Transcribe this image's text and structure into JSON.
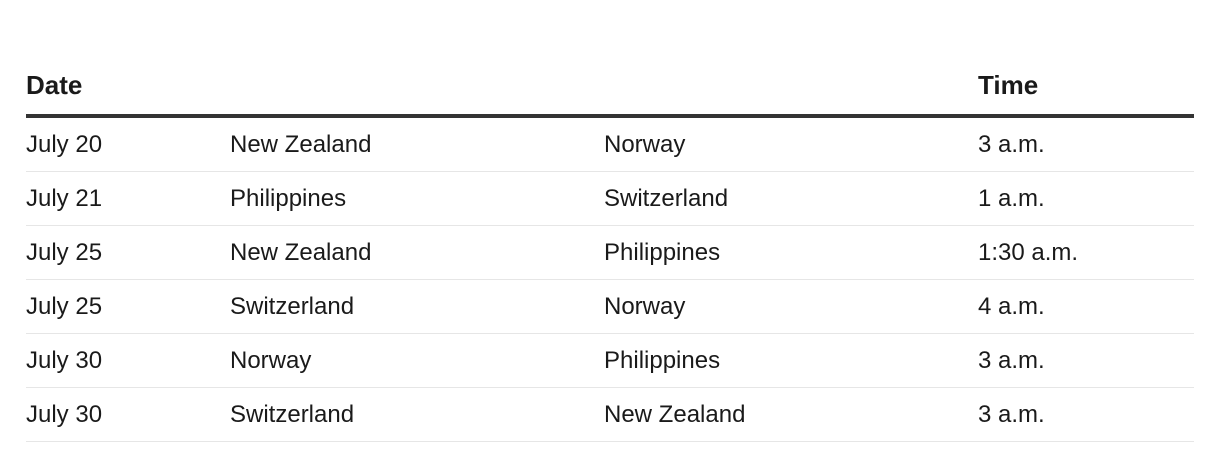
{
  "headers": [
    "Date",
    "",
    "",
    "Time"
  ],
  "rows": [
    [
      "July 20",
      "New Zealand",
      "Norway",
      "3 a.m."
    ],
    [
      "July 21",
      "Philippines",
      "Switzerland",
      "1 a.m."
    ],
    [
      "July 25",
      "New Zealand",
      "Philippines",
      "1:30 a.m."
    ],
    [
      "July 25",
      "Switzerland",
      "Norway",
      "4 a.m."
    ],
    [
      "July 30",
      "Norway",
      "Philippines",
      "3 a.m."
    ],
    [
      "July 30",
      "Switzerland",
      "New Zealand",
      "3 a.m."
    ]
  ]
}
